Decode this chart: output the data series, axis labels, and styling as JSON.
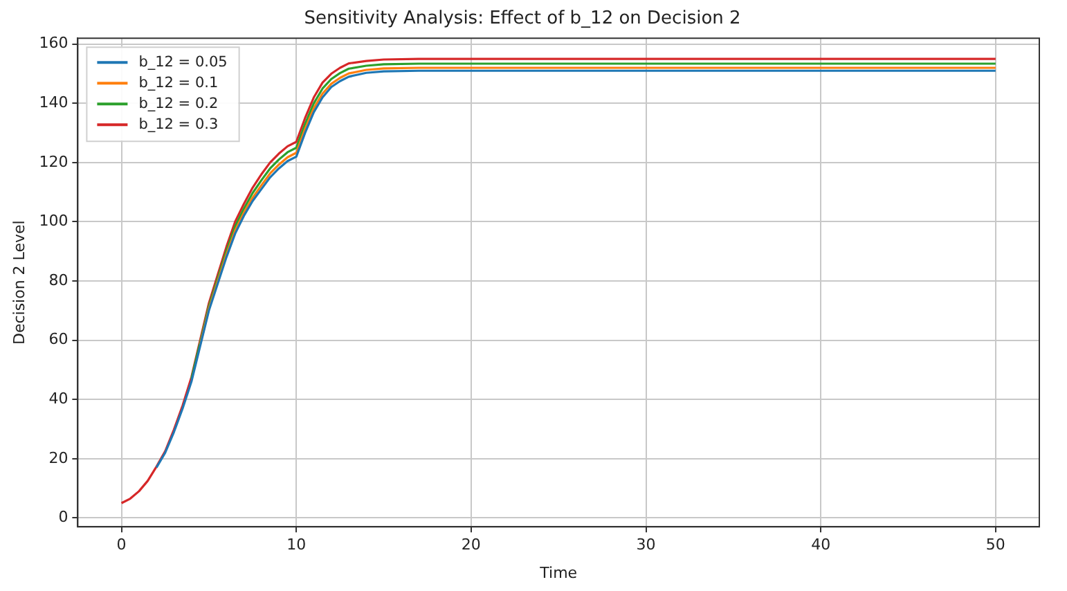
{
  "chart_data": {
    "type": "line",
    "title": "Sensitivity Analysis: Effect of b_12 on Decision 2",
    "xlabel": "Time",
    "ylabel": "Decision 2 Level",
    "x": [
      0,
      0.5,
      1,
      1.5,
      2,
      2.5,
      3,
      3.5,
      4,
      4.5,
      5,
      5.5,
      6,
      6.5,
      7,
      7.5,
      8,
      8.5,
      9,
      9.5,
      10,
      10.5,
      11,
      11.5,
      12,
      12.5,
      13,
      14,
      15,
      17,
      20,
      30,
      40,
      50
    ],
    "series": [
      {
        "name": "b_12 = 0.05",
        "color": "#1f77b4",
        "values": [
          null,
          null,
          null,
          null,
          17,
          22,
          29,
          37,
          46,
          58,
          70,
          79,
          88,
          96,
          102,
          107,
          111,
          115,
          118,
          120.5,
          122,
          130,
          137,
          142,
          145.5,
          147.5,
          149,
          150.3,
          150.8,
          151,
          151,
          151,
          151,
          151
        ]
      },
      {
        "name": "b_12 = 0.1",
        "color": "#ff7f0e",
        "values": [
          null,
          null,
          null,
          null,
          null,
          null,
          null,
          null,
          null,
          58.5,
          70.6,
          79.8,
          88.9,
          97,
          103,
          108.1,
          112.3,
          116.3,
          119.3,
          121.8,
          123.3,
          131.3,
          138.3,
          143.3,
          146.6,
          148.6,
          150.1,
          151.3,
          151.8,
          152,
          152,
          152,
          152,
          152
        ]
      },
      {
        "name": "b_12 = 0.2",
        "color": "#2ca02c",
        "values": [
          null,
          null,
          null,
          null,
          null,
          null,
          null,
          null,
          46.9,
          59.2,
          71.5,
          80.8,
          90.1,
          98.4,
          104.4,
          109.7,
          114,
          118,
          121,
          123.5,
          125,
          133,
          140,
          145,
          148.2,
          150.2,
          151.7,
          152.7,
          153.2,
          153.4,
          153.4,
          153.4,
          153.4,
          153.4
        ]
      },
      {
        "name": "b_12 = 0.3",
        "color": "#d62728",
        "values": [
          5,
          6.5,
          9,
          12.5,
          17.3,
          22.5,
          29.8,
          38,
          47.5,
          60,
          72.5,
          82,
          91.5,
          100,
          106,
          111.5,
          116,
          120,
          123,
          125.5,
          127,
          135,
          142,
          147,
          150,
          152,
          153.5,
          154.3,
          154.8,
          155,
          155,
          155,
          155,
          155
        ]
      }
    ],
    "xlim": [
      -2.5,
      52.5
    ],
    "xticks": [
      0,
      10,
      20,
      30,
      40,
      50
    ],
    "ylim": [
      -3,
      162
    ],
    "yticks": [
      0,
      20,
      40,
      60,
      80,
      100,
      120,
      140,
      160
    ],
    "grid": true,
    "legend": "top left",
    "marker": "none",
    "line_style": "solid"
  }
}
